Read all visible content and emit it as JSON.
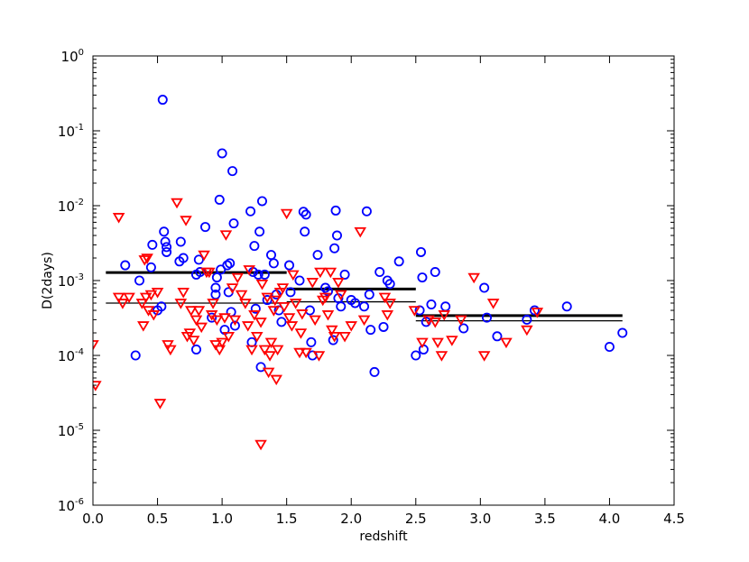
{
  "chart_data": {
    "type": "scatter",
    "xlabel": "redshift",
    "ylabel": "D(2days)",
    "xlim": [
      0.0,
      4.5
    ],
    "ylim": [
      1e-06,
      1
    ],
    "yscale": "log",
    "grid": false,
    "x_ticks": [
      "0.0",
      "0.5",
      "1.0",
      "1.5",
      "2.0",
      "2.5",
      "3.0",
      "3.5",
      "4.0",
      "4.5"
    ],
    "y_ticks": [
      {
        "value": 1e-06,
        "base": "10",
        "exp": "-6"
      },
      {
        "value": 1e-05,
        "base": "10",
        "exp": "-5"
      },
      {
        "value": 0.0001,
        "base": "10",
        "exp": "-4"
      },
      {
        "value": 0.001,
        "base": "10",
        "exp": "-3"
      },
      {
        "value": 0.01,
        "base": "10",
        "exp": "-2"
      },
      {
        "value": 0.1,
        "base": "10",
        "exp": "-1"
      },
      {
        "value": 1,
        "base": "10",
        "exp": "0"
      }
    ],
    "series": [
      {
        "marker": "circle",
        "color": "#0000ff",
        "points": [
          [
            0.25,
            0.0016
          ],
          [
            0.33,
            0.0001
          ],
          [
            0.36,
            0.001
          ],
          [
            0.45,
            0.0015
          ],
          [
            0.46,
            0.003
          ],
          [
            0.5,
            0.0004
          ],
          [
            0.53,
            0.00045
          ],
          [
            0.54,
            0.26
          ],
          [
            0.55,
            0.0045
          ],
          [
            0.56,
            0.0033
          ],
          [
            0.57,
            0.0024
          ],
          [
            0.57,
            0.0028
          ],
          [
            0.67,
            0.0018
          ],
          [
            0.68,
            0.0033
          ],
          [
            0.7,
            0.002
          ],
          [
            0.8,
            0.0012
          ],
          [
            0.8,
            0.00012
          ],
          [
            0.82,
            0.0019
          ],
          [
            0.83,
            0.0013
          ],
          [
            0.87,
            0.0052
          ],
          [
            0.92,
            0.00032
          ],
          [
            0.95,
            0.00065
          ],
          [
            0.95,
            0.0008
          ],
          [
            0.96,
            0.0011
          ],
          [
            0.98,
            0.012
          ],
          [
            0.99,
            0.0014
          ],
          [
            1.0,
            0.05
          ],
          [
            1.02,
            0.00022
          ],
          [
            1.04,
            0.0016
          ],
          [
            1.05,
            0.0007
          ],
          [
            1.06,
            0.0017
          ],
          [
            1.07,
            0.00038
          ],
          [
            1.08,
            0.029
          ],
          [
            1.09,
            0.0058
          ],
          [
            1.1,
            0.00025
          ],
          [
            1.22,
            0.0084
          ],
          [
            1.23,
            0.00015
          ],
          [
            1.24,
            0.0013
          ],
          [
            1.25,
            0.0029
          ],
          [
            1.26,
            0.00042
          ],
          [
            1.28,
            0.0012
          ],
          [
            1.29,
            0.0045
          ],
          [
            1.3,
            7e-05
          ],
          [
            1.31,
            0.0115
          ],
          [
            1.33,
            0.0012
          ],
          [
            1.35,
            0.00055
          ],
          [
            1.38,
            0.0022
          ],
          [
            1.4,
            0.0017
          ],
          [
            1.42,
            0.00065
          ],
          [
            1.44,
            0.0004
          ],
          [
            1.46,
            0.00028
          ],
          [
            1.52,
            0.0016
          ],
          [
            1.53,
            0.0007
          ],
          [
            1.6,
            0.001
          ],
          [
            1.63,
            0.0083
          ],
          [
            1.64,
            0.0045
          ],
          [
            1.65,
            0.0076
          ],
          [
            1.68,
            0.0004
          ],
          [
            1.69,
            0.00015
          ],
          [
            1.7,
            0.0001
          ],
          [
            1.74,
            0.0022
          ],
          [
            1.8,
            0.0008
          ],
          [
            1.82,
            0.00072
          ],
          [
            1.86,
            0.00016
          ],
          [
            1.87,
            0.0027
          ],
          [
            1.88,
            0.0086
          ],
          [
            1.89,
            0.004
          ],
          [
            1.9,
            0.00058
          ],
          [
            1.92,
            0.00045
          ],
          [
            1.95,
            0.0012
          ],
          [
            2.0,
            0.00055
          ],
          [
            2.03,
            0.0005
          ],
          [
            2.1,
            0.00045
          ],
          [
            2.12,
            0.0084
          ],
          [
            2.14,
            0.00065
          ],
          [
            2.15,
            0.00022
          ],
          [
            2.18,
            6e-05
          ],
          [
            2.22,
            0.0013
          ],
          [
            2.25,
            0.00024
          ],
          [
            2.28,
            0.001
          ],
          [
            2.3,
            0.0009
          ],
          [
            2.37,
            0.0018
          ],
          [
            2.5,
            0.0001
          ],
          [
            2.53,
            0.0004
          ],
          [
            2.54,
            0.0024
          ],
          [
            2.55,
            0.0011
          ],
          [
            2.56,
            0.00012
          ],
          [
            2.58,
            0.00028
          ],
          [
            2.62,
            0.00048
          ],
          [
            2.65,
            0.0013
          ],
          [
            2.73,
            0.00045
          ],
          [
            2.87,
            0.00023
          ],
          [
            3.03,
            0.0008
          ],
          [
            3.05,
            0.00032
          ],
          [
            3.13,
            0.00018
          ],
          [
            3.36,
            0.0003
          ],
          [
            3.42,
            0.0004
          ],
          [
            3.67,
            0.00045
          ],
          [
            4.0,
            0.00013
          ],
          [
            4.1,
            0.0002
          ]
        ]
      },
      {
        "marker": "triangle-down",
        "color": "#ff0000",
        "points": [
          [
            0.0,
            0.00014
          ],
          [
            0.02,
            4e-05
          ],
          [
            0.2,
            0.007
          ],
          [
            0.2,
            0.0006
          ],
          [
            0.23,
            0.0005
          ],
          [
            0.28,
            0.0006
          ],
          [
            0.38,
            0.0005
          ],
          [
            0.39,
            0.00025
          ],
          [
            0.4,
            0.0019
          ],
          [
            0.41,
            0.0006
          ],
          [
            0.42,
            0.002
          ],
          [
            0.43,
            0.0004
          ],
          [
            0.45,
            0.00065
          ],
          [
            0.47,
            0.00035
          ],
          [
            0.5,
            0.0007
          ],
          [
            0.52,
            2.3e-05
          ],
          [
            0.58,
            0.00014
          ],
          [
            0.6,
            0.00012
          ],
          [
            0.65,
            0.011
          ],
          [
            0.68,
            0.0005
          ],
          [
            0.7,
            0.0007
          ],
          [
            0.72,
            0.0064
          ],
          [
            0.73,
            0.00018
          ],
          [
            0.75,
            0.0002
          ],
          [
            0.76,
            0.0004
          ],
          [
            0.78,
            0.00016
          ],
          [
            0.8,
            0.0003
          ],
          [
            0.82,
            0.0004
          ],
          [
            0.84,
            0.00024
          ],
          [
            0.86,
            0.0022
          ],
          [
            0.88,
            0.0013
          ],
          [
            0.9,
            0.0013
          ],
          [
            0.92,
            0.00035
          ],
          [
            0.93,
            0.0005
          ],
          [
            0.95,
            0.00014
          ],
          [
            0.96,
            0.0003
          ],
          [
            0.98,
            0.00012
          ],
          [
            1.0,
            0.00015
          ],
          [
            1.02,
            0.00032
          ],
          [
            1.03,
            0.0041
          ],
          [
            1.05,
            0.00018
          ],
          [
            1.08,
            0.0008
          ],
          [
            1.1,
            0.0003
          ],
          [
            1.12,
            0.0011
          ],
          [
            1.15,
            0.00065
          ],
          [
            1.18,
            0.0005
          ],
          [
            1.2,
            0.00025
          ],
          [
            1.21,
            0.0014
          ],
          [
            1.23,
            0.00012
          ],
          [
            1.25,
            0.00035
          ],
          [
            1.27,
            0.00018
          ],
          [
            1.3,
            6.5e-06
          ],
          [
            1.3,
            0.00028
          ],
          [
            1.31,
            0.0009
          ],
          [
            1.33,
            0.00012
          ],
          [
            1.35,
            0.0006
          ],
          [
            1.36,
            6e-05
          ],
          [
            1.37,
            0.0001
          ],
          [
            1.38,
            0.00015
          ],
          [
            1.4,
            0.0004
          ],
          [
            1.41,
            0.00055
          ],
          [
            1.42,
            4.8e-05
          ],
          [
            1.43,
            0.00012
          ],
          [
            1.45,
            0.0007
          ],
          [
            1.47,
            0.0008
          ],
          [
            1.48,
            0.00045
          ],
          [
            1.5,
            0.0079
          ],
          [
            1.52,
            0.00032
          ],
          [
            1.54,
            0.00025
          ],
          [
            1.55,
            0.0012
          ],
          [
            1.57,
            0.0005
          ],
          [
            1.6,
            0.00011
          ],
          [
            1.61,
            0.0002
          ],
          [
            1.62,
            0.00036
          ],
          [
            1.65,
            0.00011
          ],
          [
            1.7,
            0.00095
          ],
          [
            1.72,
            0.0003
          ],
          [
            1.75,
            0.0001
          ],
          [
            1.76,
            0.0013
          ],
          [
            1.78,
            0.00055
          ],
          [
            1.8,
            0.0006
          ],
          [
            1.82,
            0.00035
          ],
          [
            1.84,
            0.0013
          ],
          [
            1.85,
            0.00022
          ],
          [
            1.87,
            0.00018
          ],
          [
            1.9,
            0.00095
          ],
          [
            1.92,
            0.00065
          ],
          [
            1.95,
            0.00018
          ],
          [
            2.0,
            0.00025
          ],
          [
            2.07,
            0.0045
          ],
          [
            2.1,
            0.0003
          ],
          [
            2.26,
            0.0006
          ],
          [
            2.28,
            0.00035
          ],
          [
            2.3,
            0.0005
          ],
          [
            2.49,
            0.0004
          ],
          [
            2.55,
            0.00015
          ],
          [
            2.6,
            0.0003
          ],
          [
            2.65,
            0.00028
          ],
          [
            2.67,
            0.00015
          ],
          [
            2.7,
            0.0001
          ],
          [
            2.72,
            0.00035
          ],
          [
            2.78,
            0.00016
          ],
          [
            2.85,
            0.0003
          ],
          [
            2.95,
            0.0011
          ],
          [
            3.03,
            0.0001
          ],
          [
            3.1,
            0.0005
          ],
          [
            3.2,
            0.00015
          ],
          [
            3.36,
            0.00022
          ],
          [
            3.44,
            0.00038
          ]
        ]
      }
    ],
    "binned_lines": [
      {
        "x": [
          0.1,
          1.5
        ],
        "y": 0.00128,
        "width": 3
      },
      {
        "x": [
          1.5,
          2.5
        ],
        "y": 0.00077,
        "width": 3
      },
      {
        "x": [
          2.5,
          4.1
        ],
        "y": 0.00034,
        "width": 3
      },
      {
        "x": [
          0.1,
          1.5
        ],
        "y": 0.0005,
        "width": 1.3
      },
      {
        "x": [
          1.5,
          2.5
        ],
        "y": 0.00052,
        "width": 1.3
      },
      {
        "x": [
          2.5,
          4.1
        ],
        "y": 0.00029,
        "width": 1.3
      }
    ]
  }
}
